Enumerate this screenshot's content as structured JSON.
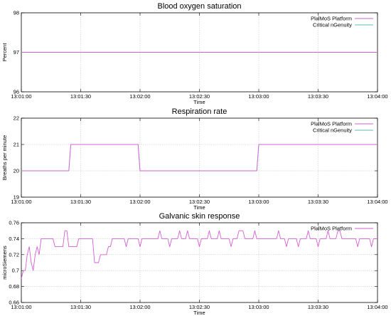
{
  "chart_data": [
    {
      "type": "line",
      "title": "Blood oxygen saturation",
      "xlabel": "Time",
      "ylabel": "Percent",
      "xlim": [
        "13:01:00",
        "13:04:00"
      ],
      "ylim": [
        96,
        98
      ],
      "x_ticks": [
        "13:01:00",
        "13:01:30",
        "13:02:00",
        "13:02:30",
        "13:03:00",
        "13:03:30",
        "13:04:00"
      ],
      "y_ticks": [
        96,
        97,
        98
      ],
      "grid": true,
      "legend": "top-right",
      "series": [
        {
          "name": "PlalMoS Platform",
          "color": "#d35fd3",
          "points": [
            [
              "13:01:00",
              97
            ],
            [
              "13:04:00",
              97
            ]
          ]
        },
        {
          "name": "Critical nGenuity",
          "color": "#5fbcb4",
          "points": [
            [
              "13:01:00",
              97
            ],
            [
              "13:04:00",
              97
            ]
          ]
        }
      ]
    },
    {
      "type": "line",
      "title": "Respiration rate",
      "xlabel": "Time",
      "ylabel": "Breaths per minute",
      "xlim": [
        "13:01:00",
        "13:04:00"
      ],
      "ylim": [
        19,
        22
      ],
      "x_ticks": [
        "13:01:00",
        "13:01:30",
        "13:02:00",
        "13:02:30",
        "13:03:00",
        "13:03:30",
        "13:04:00"
      ],
      "y_ticks": [
        19,
        20,
        21,
        22
      ],
      "grid": true,
      "legend": "top-right",
      "series": [
        {
          "name": "PlalMoS Platform",
          "color": "#d35fd3",
          "points": [
            [
              "13:01:00",
              20
            ],
            [
              "13:01:24",
              20
            ],
            [
              "13:01:25",
              21
            ],
            [
              "13:01:59",
              21
            ],
            [
              "13:02:00",
              20
            ],
            [
              "13:02:59",
              20
            ],
            [
              "13:03:00",
              21
            ],
            [
              "13:04:00",
              21
            ]
          ]
        },
        {
          "name": "Critical nGenuity",
          "color": "#5fbcb4",
          "points": [
            [
              "13:01:00",
              20
            ],
            [
              "13:01:24",
              20
            ],
            [
              "13:01:25",
              21
            ],
            [
              "13:01:59",
              21
            ],
            [
              "13:02:00",
              20
            ],
            [
              "13:02:59",
              20
            ],
            [
              "13:03:00",
              21
            ],
            [
              "13:04:00",
              21
            ]
          ]
        }
      ]
    },
    {
      "type": "line",
      "title": "Galvanic skin response",
      "xlabel": "Time",
      "ylabel": "microSiemens",
      "xlim": [
        "13:01:00",
        "13:04:00"
      ],
      "ylim": [
        0.66,
        0.76
      ],
      "x_ticks": [
        "13:01:00",
        "13:01:30",
        "13:02:00",
        "13:02:30",
        "13:03:00",
        "13:03:30",
        "13:04:00"
      ],
      "y_ticks": [
        0.66,
        0.68,
        0.7,
        0.72,
        0.74,
        0.76
      ],
      "grid": true,
      "legend": "top-right",
      "series": [
        {
          "name": "PlalMoS Platform",
          "color": "#d35fd3",
          "points": [
            [
              "13:01:00",
              0.69
            ],
            [
              "13:01:01",
              0.7
            ],
            [
              "13:01:02",
              0.7
            ],
            [
              "13:01:03",
              0.72
            ],
            [
              "13:01:04",
              0.73
            ],
            [
              "13:01:05",
              0.71
            ],
            [
              "13:01:06",
              0.7
            ],
            [
              "13:01:07",
              0.72
            ],
            [
              "13:01:08",
              0.73
            ],
            [
              "13:01:09",
              0.72
            ],
            [
              "13:01:10",
              0.74
            ],
            [
              "13:01:16",
              0.74
            ],
            [
              "13:01:17",
              0.73
            ],
            [
              "13:01:21",
              0.73
            ],
            [
              "13:01:22",
              0.75
            ],
            [
              "13:01:23",
              0.75
            ],
            [
              "13:01:24",
              0.73
            ],
            [
              "13:01:28",
              0.73
            ],
            [
              "13:01:29",
              0.74
            ],
            [
              "13:01:36",
              0.74
            ],
            [
              "13:01:37",
              0.71
            ],
            [
              "13:01:39",
              0.71
            ],
            [
              "13:01:40",
              0.72
            ],
            [
              "13:01:43",
              0.72
            ],
            [
              "13:01:44",
              0.73
            ],
            [
              "13:01:45",
              0.73
            ],
            [
              "13:01:46",
              0.74
            ],
            [
              "13:01:52",
              0.74
            ],
            [
              "13:01:53",
              0.73
            ],
            [
              "13:01:54",
              0.74
            ],
            [
              "13:01:59",
              0.74
            ],
            [
              "13:02:00",
              0.73
            ],
            [
              "13:02:01",
              0.74
            ],
            [
              "13:02:09",
              0.74
            ],
            [
              "13:02:10",
              0.75
            ],
            [
              "13:02:11",
              0.74
            ],
            [
              "13:02:14",
              0.74
            ],
            [
              "13:02:15",
              0.73
            ],
            [
              "13:02:16",
              0.74
            ],
            [
              "13:02:19",
              0.74
            ],
            [
              "13:02:20",
              0.75
            ],
            [
              "13:02:21",
              0.74
            ],
            [
              "13:02:23",
              0.74
            ],
            [
              "13:02:24",
              0.75
            ],
            [
              "13:02:25",
              0.74
            ],
            [
              "13:02:29",
              0.74
            ],
            [
              "13:02:30",
              0.73
            ],
            [
              "13:02:31",
              0.74
            ],
            [
              "13:02:34",
              0.74
            ],
            [
              "13:02:35",
              0.75
            ],
            [
              "13:02:36",
              0.74
            ],
            [
              "13:02:39",
              0.74
            ],
            [
              "13:02:40",
              0.75
            ],
            [
              "13:02:41",
              0.74
            ],
            [
              "13:02:45",
              0.74
            ],
            [
              "13:02:46",
              0.73
            ],
            [
              "13:02:47",
              0.74
            ],
            [
              "13:02:49",
              0.74
            ],
            [
              "13:02:50",
              0.75
            ],
            [
              "13:02:52",
              0.75
            ],
            [
              "13:02:53",
              0.74
            ],
            [
              "13:02:57",
              0.74
            ],
            [
              "13:02:58",
              0.75
            ],
            [
              "13:02:59",
              0.74
            ],
            [
              "13:03:09",
              0.74
            ],
            [
              "13:03:10",
              0.75
            ],
            [
              "13:03:11",
              0.74
            ],
            [
              "13:03:13",
              0.74
            ],
            [
              "13:03:14",
              0.73
            ],
            [
              "13:03:15",
              0.74
            ],
            [
              "13:03:19",
              0.74
            ],
            [
              "13:03:20",
              0.73
            ],
            [
              "13:03:21",
              0.74
            ],
            [
              "13:03:24",
              0.74
            ],
            [
              "13:03:25",
              0.75
            ],
            [
              "13:03:26",
              0.74
            ],
            [
              "13:03:29",
              0.74
            ],
            [
              "13:03:30",
              0.73
            ],
            [
              "13:03:31",
              0.74
            ],
            [
              "13:03:34",
              0.74
            ],
            [
              "13:03:35",
              0.75
            ],
            [
              "13:03:36",
              0.74
            ],
            [
              "13:03:39",
              0.74
            ],
            [
              "13:03:40",
              0.75
            ],
            [
              "13:03:41",
              0.75
            ],
            [
              "13:03:42",
              0.74
            ],
            [
              "13:03:49",
              0.74
            ],
            [
              "13:03:50",
              0.73
            ],
            [
              "13:03:51",
              0.74
            ],
            [
              "13:03:56",
              0.74
            ],
            [
              "13:03:57",
              0.73
            ],
            [
              "13:03:58",
              0.74
            ],
            [
              "13:04:00",
              0.74
            ]
          ]
        }
      ]
    }
  ]
}
